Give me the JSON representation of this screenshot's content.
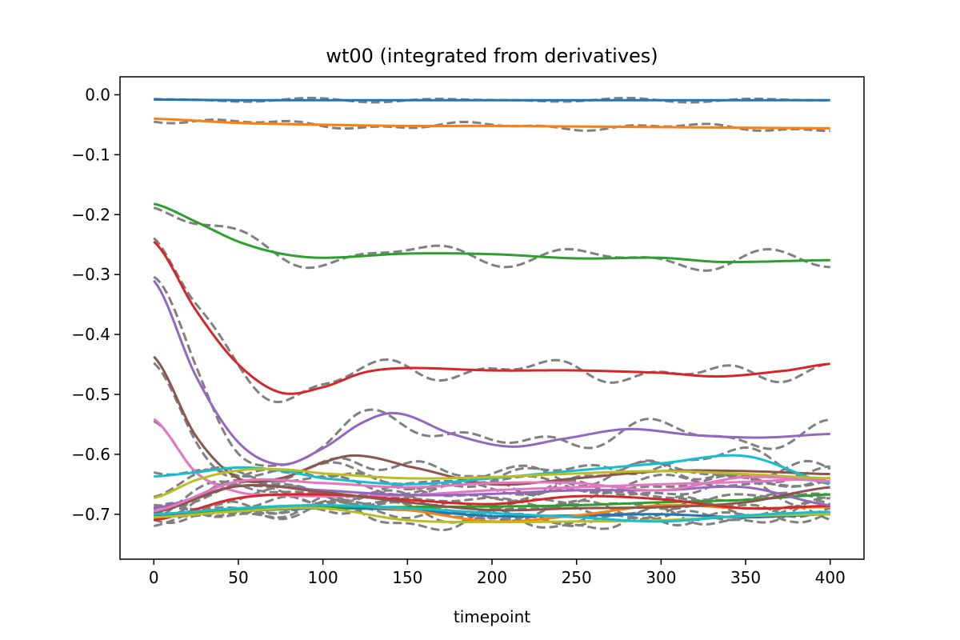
{
  "chart_data": {
    "type": "line",
    "title": "wt00 (integrated from derivatives)",
    "xlabel": "timepoint",
    "ylabel": "",
    "xlim": [
      -20,
      420
    ],
    "ylim": [
      -0.775,
      0.03
    ],
    "xticks": [
      0,
      50,
      100,
      150,
      200,
      250,
      300,
      350,
      400
    ],
    "yticks": [
      0.0,
      -0.1,
      -0.2,
      -0.3,
      -0.4,
      -0.5,
      -0.6,
      -0.7
    ],
    "ytick_labels": [
      "0.0",
      "−0.1",
      "−0.2",
      "−0.3",
      "−0.4",
      "−0.5",
      "−0.6",
      "−0.7"
    ],
    "grid": false,
    "legend": "none",
    "colors": {
      "blue": "#1f77b4",
      "orange": "#ff7f0e",
      "green": "#2ca02c",
      "red": "#d62728",
      "purple": "#9467bd",
      "brown": "#8c564b",
      "pink": "#e377c2",
      "olive": "#bcbd22",
      "cyan": "#17becf",
      "gray": "#808080"
    },
    "dashed_reference_color": "#808080",
    "series": [
      {
        "color": "#1f77b4",
        "x": [
          0,
          50,
          100,
          150,
          200,
          250,
          300,
          350,
          400
        ],
        "y": [
          -0.008,
          -0.009,
          -0.009,
          -0.009,
          -0.009,
          -0.009,
          -0.009,
          -0.009,
          -0.009
        ]
      },
      {
        "color": "#ff7f0e",
        "x": [
          0,
          50,
          100,
          150,
          200,
          250,
          300,
          350,
          400
        ],
        "y": [
          -0.04,
          -0.047,
          -0.05,
          -0.052,
          -0.052,
          -0.053,
          -0.054,
          -0.055,
          -0.056
        ]
      },
      {
        "color": "#2ca02c",
        "x": [
          0,
          25,
          50,
          75,
          100,
          150,
          200,
          250,
          300,
          335,
          400
        ],
        "y": [
          -0.182,
          -0.212,
          -0.245,
          -0.265,
          -0.272,
          -0.265,
          -0.266,
          -0.273,
          -0.272,
          -0.279,
          -0.276
        ]
      },
      {
        "color": "#d62728",
        "x": [
          0,
          25,
          50,
          75,
          100,
          125,
          150,
          200,
          250,
          300,
          335,
          375,
          400
        ],
        "y": [
          -0.245,
          -0.36,
          -0.45,
          -0.497,
          -0.488,
          -0.463,
          -0.456,
          -0.46,
          -0.46,
          -0.464,
          -0.47,
          -0.46,
          -0.449
        ]
      },
      {
        "color": "#9467bd",
        "x": [
          0,
          25,
          50,
          75,
          100,
          125,
          145,
          175,
          210,
          240,
          280,
          320,
          360,
          400
        ],
        "y": [
          -0.31,
          -0.47,
          -0.58,
          -0.617,
          -0.59,
          -0.545,
          -0.532,
          -0.565,
          -0.587,
          -0.575,
          -0.558,
          -0.568,
          -0.572,
          -0.566
        ]
      },
      {
        "color": "#8c564b",
        "x": [
          0,
          25,
          50,
          75,
          100,
          120,
          150,
          200,
          250,
          300,
          350,
          400
        ],
        "y": [
          -0.437,
          -0.57,
          -0.64,
          -0.64,
          -0.614,
          -0.602,
          -0.62,
          -0.65,
          -0.64,
          -0.628,
          -0.628,
          -0.633
        ]
      },
      {
        "color": "#e377c2",
        "x": [
          0,
          25,
          50,
          75,
          100,
          150,
          200,
          250,
          300,
          350,
          400
        ],
        "y": [
          -0.541,
          -0.63,
          -0.663,
          -0.668,
          -0.67,
          -0.668,
          -0.66,
          -0.655,
          -0.65,
          -0.646,
          -0.64
        ]
      },
      {
        "color": "#17becf",
        "x": [
          0,
          25,
          50,
          75,
          100,
          150,
          200,
          250,
          300,
          350,
          400
        ],
        "y": [
          -0.637,
          -0.63,
          -0.622,
          -0.627,
          -0.64,
          -0.65,
          -0.64,
          -0.627,
          -0.615,
          -0.603,
          -0.648
        ]
      },
      {
        "color": "#bcbd22",
        "x": [
          0,
          25,
          50,
          75,
          100,
          150,
          200,
          250,
          300,
          350,
          400
        ],
        "y": [
          -0.673,
          -0.643,
          -0.627,
          -0.625,
          -0.632,
          -0.64,
          -0.638,
          -0.632,
          -0.628,
          -0.633,
          -0.64
        ]
      },
      {
        "color": "#1f77b4",
        "x": [
          0,
          50,
          100,
          150,
          200,
          250,
          300,
          350,
          400
        ],
        "y": [
          -0.703,
          -0.695,
          -0.69,
          -0.693,
          -0.703,
          -0.702,
          -0.7,
          -0.705,
          -0.7
        ]
      },
      {
        "color": "#ff7f0e",
        "x": [
          0,
          50,
          100,
          150,
          200,
          250,
          300,
          350,
          400
        ],
        "y": [
          -0.7,
          -0.69,
          -0.685,
          -0.693,
          -0.712,
          -0.702,
          -0.685,
          -0.69,
          -0.688
        ]
      },
      {
        "color": "#2ca02c",
        "x": [
          0,
          50,
          100,
          150,
          200,
          250,
          300,
          350,
          400
        ],
        "y": [
          -0.706,
          -0.692,
          -0.688,
          -0.688,
          -0.687,
          -0.685,
          -0.68,
          -0.676,
          -0.667
        ]
      },
      {
        "color": "#d62728",
        "x": [
          0,
          50,
          100,
          150,
          200,
          250,
          300,
          350,
          400
        ],
        "y": [
          -0.71,
          -0.673,
          -0.667,
          -0.676,
          -0.683,
          -0.67,
          -0.675,
          -0.69,
          -0.686
        ]
      },
      {
        "color": "#9467bd",
        "x": [
          0,
          50,
          100,
          150,
          200,
          250,
          300,
          350,
          400
        ],
        "y": [
          -0.69,
          -0.653,
          -0.66,
          -0.668,
          -0.666,
          -0.66,
          -0.66,
          -0.655,
          -0.685
        ]
      },
      {
        "color": "#8c564b",
        "x": [
          0,
          50,
          100,
          150,
          200,
          250,
          300,
          350,
          400
        ],
        "y": [
          -0.697,
          -0.653,
          -0.663,
          -0.68,
          -0.693,
          -0.69,
          -0.688,
          -0.68,
          -0.655
        ]
      },
      {
        "color": "#e377c2",
        "x": [
          0,
          50,
          100,
          150,
          200,
          250,
          300,
          350,
          400
        ],
        "y": [
          -0.695,
          -0.645,
          -0.648,
          -0.655,
          -0.648,
          -0.648,
          -0.66,
          -0.638,
          -0.645
        ]
      },
      {
        "color": "#bcbd22",
        "x": [
          0,
          50,
          100,
          150,
          200,
          250,
          300,
          350,
          400
        ],
        "y": [
          -0.705,
          -0.695,
          -0.69,
          -0.71,
          -0.713,
          -0.712,
          -0.71,
          -0.703,
          -0.7
        ]
      },
      {
        "color": "#17becf",
        "x": [
          0,
          50,
          100,
          150,
          200,
          250,
          300,
          350,
          400
        ],
        "y": [
          -0.7,
          -0.69,
          -0.685,
          -0.69,
          -0.698,
          -0.705,
          -0.712,
          -0.702,
          -0.696
        ]
      }
    ]
  }
}
